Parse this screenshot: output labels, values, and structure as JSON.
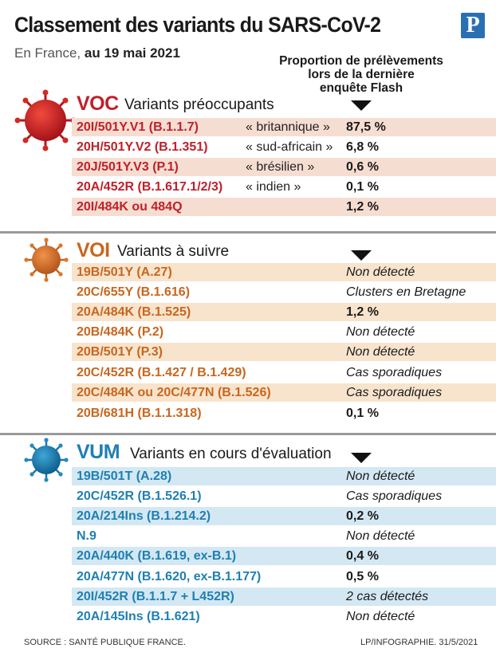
{
  "header": {
    "title": "Classement des variants du SARS-CoV-2",
    "subtitle_prefix": "En France,",
    "subtitle_date": "au 19 mai 2021",
    "logo": "P",
    "column_heading": [
      "Proportion de prélèvements",
      "lors de la dernière",
      "enquête Flash"
    ]
  },
  "colors": {
    "voc": "#c0202a",
    "voi": "#c8661e",
    "vum": "#1f7fb2"
  },
  "sections": {
    "voc": {
      "code": "VOC",
      "label": "Variants préoccupants",
      "icon": "red-virus-icon",
      "rows": [
        {
          "code": "20I/501Y.V1 (B.1.1.7)",
          "nick": "« britannique »",
          "value": "87,5 %"
        },
        {
          "code": "20H/501Y.V2 (B.1.351)",
          "nick": "« sud-africain »",
          "value": "6,8 %"
        },
        {
          "code": "20J/501Y.V3 (P.1)",
          "nick": "« brésilien »",
          "value": "0,6 %"
        },
        {
          "code": "20A/452R (B.1.617.1/2/3)",
          "nick": "« indien »",
          "value": "0,1 %"
        },
        {
          "code": "20I/484K ou 484Q",
          "nick": "",
          "value": "1,2 %"
        }
      ]
    },
    "voi": {
      "code": "VOI",
      "label": "Variants à suivre",
      "icon": "orange-virus-icon",
      "rows": [
        {
          "code": "19B/501Y (A.27)",
          "value": "Non détecté"
        },
        {
          "code": "20C/655Y (B.1.616)",
          "value": "Clusters en Bretagne"
        },
        {
          "code": "20A/484K (B.1.525)",
          "value": "1,2 %"
        },
        {
          "code": "20B/484K (P.2)",
          "value": "Non détecté"
        },
        {
          "code": "20B/501Y (P.3)",
          "value": "Non détecté"
        },
        {
          "code": "20C/452R (B.1.427 / B.1.429)",
          "value": "Cas sporadiques"
        },
        {
          "code": "20C/484K ou 20C/477N (B.1.526)",
          "value": "Cas sporadiques"
        },
        {
          "code": "20B/681H (B.1.1.318)",
          "value": "0,1 %"
        }
      ]
    },
    "vum": {
      "code": "VUM",
      "label": "Variants en cours d'évaluation",
      "icon": "blue-virus-icon",
      "rows": [
        {
          "code": "19B/501T (A.28)",
          "value": "Non détecté"
        },
        {
          "code": "20C/452R (B.1.526.1)",
          "value": "Cas sporadiques"
        },
        {
          "code": "20A/214Ins (B.1.214.2)",
          "value": "0,2 %"
        },
        {
          "code": "N.9",
          "value": "Non détecté"
        },
        {
          "code": "20A/440K (B.1.619, ex-B.1)",
          "value": "0,4 %"
        },
        {
          "code": "20A/477N (B.1.620, ex-B.1.177)",
          "value": "0,5 %"
        },
        {
          "code": "20I/452R (B.1.1.7 + L452R)",
          "value": "2 cas détectés"
        },
        {
          "code": "20A/145Ins (B.1.621)",
          "value": "Non détecté"
        }
      ]
    }
  },
  "footer": {
    "source": "SOURCE : SANTÉ PUBLIQUE FRANCE.",
    "credit": "LP/INFOGRAPHIE. 31/5/2021"
  }
}
